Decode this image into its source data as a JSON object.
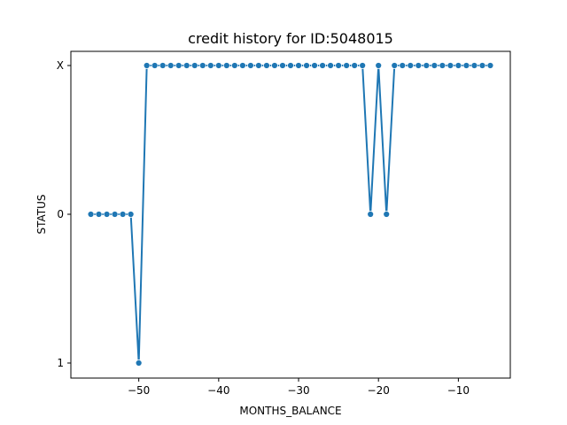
{
  "chart_data": {
    "type": "line",
    "title": "credit history for ID:5048015",
    "xlabel": "MONTHS_BALANCE",
    "ylabel": "STATUS",
    "xlim": [
      -58.5,
      -3.5
    ],
    "x_ticks": [
      -50,
      -40,
      -30,
      -20,
      -10
    ],
    "y_categories": [
      "X",
      "0",
      "1"
    ],
    "grid": false,
    "series_color": "#1f77b4",
    "series": [
      {
        "x": [
          -56,
          -55,
          -54,
          -53,
          -52,
          -51,
          -50,
          -49,
          -48,
          -47,
          -46,
          -45,
          -44,
          -43,
          -42,
          -41,
          -40,
          -39,
          -38,
          -37,
          -36,
          -35,
          -34,
          -33,
          -32,
          -31,
          -30,
          -29,
          -28,
          -27,
          -26,
          -25,
          -24,
          -23,
          -22,
          -21,
          -20,
          -19,
          -18,
          -17,
          -16,
          -15,
          -14,
          -13,
          -12,
          -11,
          -10,
          -9,
          -8,
          -7,
          -6
        ],
        "y": [
          "0",
          "0",
          "0",
          "0",
          "0",
          "0",
          "1",
          "X",
          "X",
          "X",
          "X",
          "X",
          "X",
          "X",
          "X",
          "X",
          "X",
          "X",
          "X",
          "X",
          "X",
          "X",
          "X",
          "X",
          "X",
          "X",
          "X",
          "X",
          "X",
          "X",
          "X",
          "X",
          "X",
          "X",
          "X",
          "0",
          "X",
          "0",
          "X",
          "X",
          "X",
          "X",
          "X",
          "X",
          "X",
          "X",
          "X",
          "X",
          "X",
          "X",
          "X"
        ]
      }
    ]
  }
}
